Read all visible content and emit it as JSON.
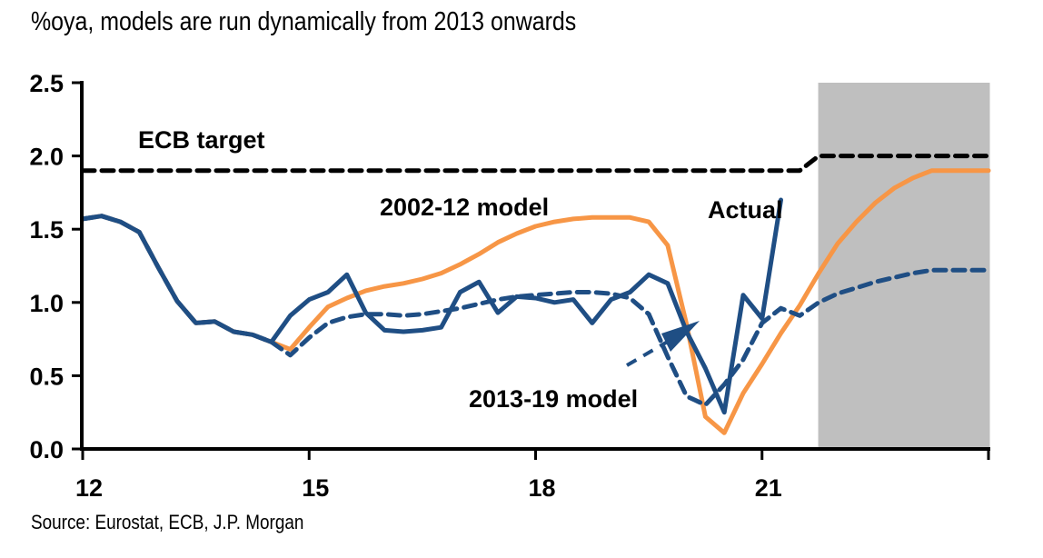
{
  "header": {
    "title": "%oya, models are run dynamically from 2013 onwards"
  },
  "footer": {
    "source": "Source: Eurostat, ECB, J.P. Morgan"
  },
  "colors": {
    "actual": "#1f4e84",
    "model_2013_19": "#1f4e84",
    "model_2002_12": "#f79646",
    "ecb_target": "#000000",
    "forecast_shade": "#bfbfbf"
  },
  "chart_data": {
    "type": "line",
    "title": "%oya, models are run dynamically from 2013 onwards",
    "xlabel": "",
    "ylabel": "",
    "x_unit": "year (quarterly, 2-digit labels)",
    "xlim": [
      2012,
      2024
    ],
    "ylim": [
      0,
      2.5
    ],
    "yticks": [
      0.0,
      0.5,
      1.0,
      1.5,
      2.0,
      2.5
    ],
    "ytick_labels": [
      "0.0",
      "0.5",
      "1.0",
      "1.5",
      "2.0",
      "2.5"
    ],
    "xticks": [
      2012,
      2015,
      2018,
      2021,
      2024
    ],
    "xtick_labels": [
      "12",
      "15",
      "18",
      "21",
      ""
    ],
    "grid": false,
    "legend": "none (inline annotations)",
    "forecast_region": {
      "from": 2021.75,
      "to": 2024
    },
    "annotations": [
      {
        "text": "ECB target",
        "series": "ecb_target"
      },
      {
        "text": "2002-12 model",
        "series": "model_2002_12"
      },
      {
        "text": "Actual",
        "series": "actual"
      },
      {
        "text": "2013-19 model",
        "series": "model_2013_19",
        "arrow": true
      }
    ],
    "series": [
      {
        "name": "ECB target",
        "key": "ecb_target",
        "style": "dashed",
        "x": [
          2012.0,
          2021.5,
          2021.75,
          2024.0
        ],
        "values": [
          1.9,
          1.9,
          2.0,
          2.0
        ]
      },
      {
        "name": "Actual",
        "key": "actual",
        "style": "solid",
        "x": [
          2012.0,
          2012.25,
          2012.5,
          2012.75,
          2013.0,
          2013.25,
          2013.5,
          2013.75,
          2014.0,
          2014.25,
          2014.5,
          2014.75,
          2015.0,
          2015.25,
          2015.5,
          2015.75,
          2016.0,
          2016.25,
          2016.5,
          2016.75,
          2017.0,
          2017.25,
          2017.5,
          2017.75,
          2018.0,
          2018.25,
          2018.5,
          2018.75,
          2019.0,
          2019.25,
          2019.5,
          2019.75,
          2020.0,
          2020.25,
          2020.5,
          2020.75,
          2021.0,
          2021.25,
          2021.5
        ],
        "values": [
          1.57,
          1.59,
          1.55,
          1.48,
          1.24,
          1.01,
          0.86,
          0.87,
          0.8,
          0.78,
          0.73,
          0.91,
          1.02,
          1.07,
          1.19,
          0.93,
          0.81,
          0.8,
          0.81,
          0.83,
          1.07,
          1.14,
          0.93,
          1.04,
          1.03,
          1.0,
          1.02,
          0.86,
          1.02,
          1.07,
          1.19,
          1.13,
          0.8,
          0.55,
          0.25,
          1.05,
          0.89,
          1.7,
          null
        ],
        "note": "Actual ends at 2021Q3 (~1.70)"
      },
      {
        "name": "2002-12 model",
        "key": "model_2002_12",
        "style": "solid",
        "x": [
          2012.0,
          2012.25,
          2012.5,
          2012.75,
          2013.0,
          2013.25,
          2013.5,
          2013.75,
          2014.0,
          2014.25,
          2014.5,
          2014.75,
          2015.0,
          2015.25,
          2015.5,
          2015.75,
          2016.0,
          2016.25,
          2016.5,
          2016.75,
          2017.0,
          2017.25,
          2017.5,
          2017.75,
          2018.0,
          2018.25,
          2018.5,
          2018.75,
          2019.0,
          2019.25,
          2019.5,
          2019.75,
          2020.0,
          2020.25,
          2020.5,
          2020.75,
          2021.0,
          2021.25,
          2021.5,
          2021.75,
          2022.0,
          2022.25,
          2022.5,
          2022.75,
          2023.0,
          2023.25,
          2023.5,
          2023.75
        ],
        "values": [
          1.57,
          1.59,
          1.55,
          1.48,
          1.24,
          1.01,
          0.86,
          0.87,
          0.8,
          0.78,
          0.73,
          0.68,
          0.83,
          0.97,
          1.03,
          1.08,
          1.11,
          1.13,
          1.16,
          1.2,
          1.26,
          1.33,
          1.41,
          1.47,
          1.52,
          1.55,
          1.57,
          1.58,
          1.58,
          1.58,
          1.55,
          1.39,
          0.85,
          0.22,
          0.11,
          0.38,
          0.58,
          0.79,
          0.98,
          1.2,
          1.4,
          1.55,
          1.68,
          1.78,
          1.85,
          1.9,
          null,
          null
        ],
        "note": "Orange curve runs to end of axis at ~1.90"
      },
      {
        "name": "2013-19 model",
        "key": "model_2013_19",
        "style": "dashed",
        "x": [
          2012.0,
          2012.25,
          2012.5,
          2012.75,
          2013.0,
          2013.25,
          2013.5,
          2013.75,
          2014.0,
          2014.25,
          2014.5,
          2014.75,
          2015.0,
          2015.25,
          2015.5,
          2015.75,
          2016.0,
          2016.25,
          2016.5,
          2016.75,
          2017.0,
          2017.25,
          2017.5,
          2017.75,
          2018.0,
          2018.25,
          2018.5,
          2018.75,
          2019.0,
          2019.25,
          2019.5,
          2019.75,
          2020.0,
          2020.25,
          2020.5,
          2020.75,
          2021.0,
          2021.25,
          2021.5,
          2021.75,
          2022.0,
          2022.25,
          2022.5,
          2022.75,
          2023.0,
          2023.25,
          2023.5,
          2023.75
        ],
        "values": [
          1.57,
          1.59,
          1.55,
          1.48,
          1.24,
          1.01,
          0.86,
          0.87,
          0.8,
          0.78,
          0.73,
          0.64,
          0.76,
          0.86,
          0.9,
          0.92,
          0.92,
          0.91,
          0.92,
          0.94,
          0.96,
          0.99,
          1.02,
          1.04,
          1.05,
          1.06,
          1.07,
          1.07,
          1.06,
          1.03,
          0.92,
          0.63,
          0.36,
          0.3,
          0.44,
          0.61,
          0.86,
          0.96,
          0.91,
          1.0,
          1.06,
          1.1,
          1.14,
          1.17,
          1.2,
          1.22,
          null,
          null
        ]
      }
    ]
  }
}
